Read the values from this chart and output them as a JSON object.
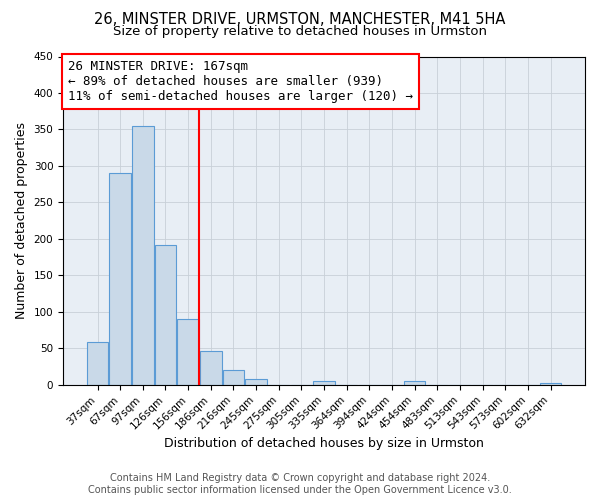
{
  "title": "26, MINSTER DRIVE, URMSTON, MANCHESTER, M41 5HA",
  "subtitle": "Size of property relative to detached houses in Urmston",
  "xlabel": "Distribution of detached houses by size in Urmston",
  "ylabel": "Number of detached properties",
  "bar_labels": [
    "37sqm",
    "67sqm",
    "97sqm",
    "126sqm",
    "156sqm",
    "186sqm",
    "216sqm",
    "245sqm",
    "275sqm",
    "305sqm",
    "335sqm",
    "364sqm",
    "394sqm",
    "424sqm",
    "454sqm",
    "483sqm",
    "513sqm",
    "543sqm",
    "573sqm",
    "602sqm",
    "632sqm"
  ],
  "bar_values": [
    59,
    290,
    355,
    192,
    90,
    46,
    20,
    8,
    0,
    0,
    5,
    0,
    0,
    0,
    5,
    0,
    0,
    0,
    0,
    0,
    3
  ],
  "bar_color": "#c9d9e8",
  "bar_edge_color": "#5b9bd5",
  "vline_color": "red",
  "annotation_line1": "26 MINSTER DRIVE: 167sqm",
  "annotation_line2": "← 89% of detached houses are smaller (939)",
  "annotation_line3": "11% of semi-detached houses are larger (120) →",
  "annotation_box_color": "white",
  "annotation_box_edge_color": "red",
  "ylim": [
    0,
    450
  ],
  "yticks": [
    0,
    50,
    100,
    150,
    200,
    250,
    300,
    350,
    400,
    450
  ],
  "footer_line1": "Contains HM Land Registry data © Crown copyright and database right 2024.",
  "footer_line2": "Contains public sector information licensed under the Open Government Licence v3.0.",
  "background_color": "#ffffff",
  "plot_bg_color": "#e8eef5",
  "grid_color": "#c8d0d8",
  "title_fontsize": 10.5,
  "subtitle_fontsize": 9.5,
  "axis_label_fontsize": 9,
  "tick_fontsize": 7.5,
  "annotation_fontsize": 9,
  "footer_fontsize": 7
}
